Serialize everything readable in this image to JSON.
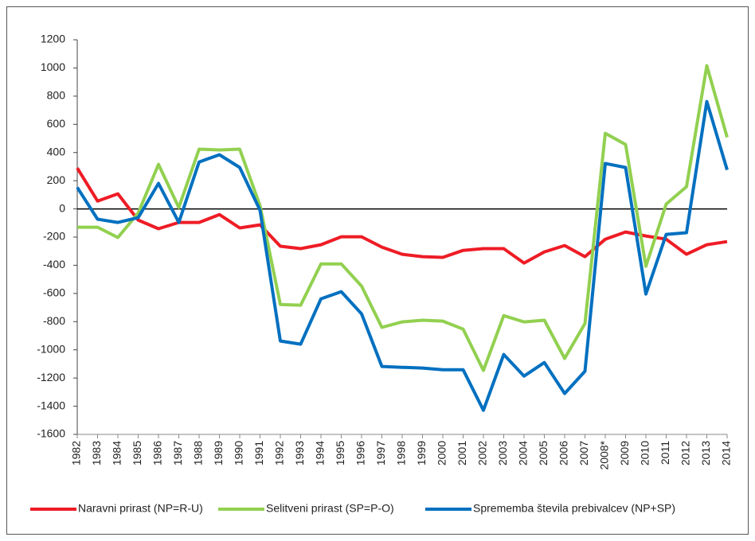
{
  "chart_data": {
    "type": "line",
    "categories": [
      "1982",
      "1983",
      "1984",
      "1985",
      "1986",
      "1987",
      "1988",
      "1989",
      "1990",
      "1991",
      "1992",
      "1993",
      "1994",
      "1995",
      "1996",
      "1997",
      "1998",
      "1999",
      "2000",
      "2001",
      "2002",
      "2003",
      "2004",
      "2005",
      "2006",
      "2007",
      "2008*",
      "2009",
      "2010",
      "2011",
      "2012",
      "2013",
      "2014"
    ],
    "series": [
      {
        "name": "Naravni prirast (NP=R-U)",
        "color": "#ee1c25",
        "values": [
          290,
          56,
          107,
          -79,
          -141,
          -96,
          -96,
          -40,
          -135,
          -113,
          -265,
          -282,
          -254,
          -198,
          -198,
          -271,
          -322,
          -339,
          -344,
          -294,
          -282,
          -282,
          -384,
          -305,
          -260,
          -339,
          -215,
          -164,
          -192,
          -215,
          -322,
          -254,
          -232
        ]
      },
      {
        "name": "Selitveni prirast (SP=P-O)",
        "color": "#92d050",
        "values": [
          -130,
          -130,
          -203,
          -30,
          316,
          10,
          424,
          418,
          424,
          23,
          -678,
          -683,
          -390,
          -390,
          -548,
          -841,
          -802,
          -790,
          -796,
          -853,
          -1146,
          -757,
          -802,
          -790,
          -1061,
          -813,
          536,
          457,
          -407,
          34,
          158,
          1016,
          508
        ]
      },
      {
        "name": "Sprememba števila prebivalcev (NP+SP)",
        "color": "#0070c0",
        "values": [
          152,
          -73,
          -96,
          -62,
          181,
          -96,
          333,
          384,
          294,
          -10,
          -937,
          -960,
          -638,
          -587,
          -745,
          -1118,
          -1124,
          -1129,
          -1141,
          -1141,
          -1429,
          -1033,
          -1186,
          -1090,
          -1310,
          -1152,
          322,
          294,
          -604,
          -181,
          -169,
          762,
          277
        ]
      }
    ],
    "ylim": [
      -1600,
      1200
    ],
    "yticks": [
      -1600,
      -1400,
      -1200,
      -1000,
      -800,
      -600,
      -400,
      -200,
      0,
      200,
      400,
      600,
      800,
      1000,
      1200
    ],
    "grid": false,
    "legend": "bottom"
  }
}
